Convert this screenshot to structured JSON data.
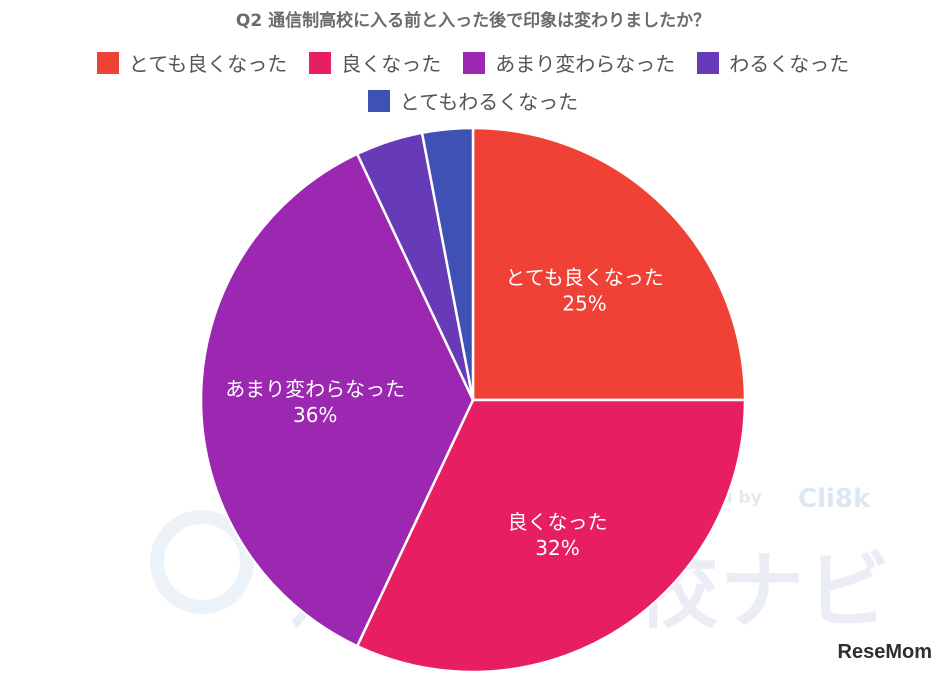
{
  "title": "Q2 通信制高校に入る前と入った後で印象は変わりましたか？",
  "chart_data": {
    "type": "pie",
    "title": "Q2 通信制高校に入る前と入った後で印象は変わりましたか？",
    "legend_position": "top",
    "slices": [
      {
        "label": "とても良くなった",
        "value": 25,
        "value_label": "25%",
        "color": "#ef4136",
        "show_label": true
      },
      {
        "label": "良くなった",
        "value": 32,
        "value_label": "32%",
        "color": "#e81e63",
        "show_label": true
      },
      {
        "label": "あまり変わらなった",
        "value": 36,
        "value_label": "36%",
        "color": "#9c27b0",
        "show_label": true
      },
      {
        "label": "わるくなった",
        "value": 4,
        "value_label": "",
        "color": "#673ab7",
        "show_label": false
      },
      {
        "label": "とてもわるくなった",
        "value": 3,
        "value_label": "",
        "color": "#3f51b5",
        "show_label": false
      }
    ]
  },
  "watermark": {
    "text": "通信制高校ナビ",
    "produced_by": "Produced by",
    "brand": "Cli8k"
  },
  "logo": "ReseMom"
}
